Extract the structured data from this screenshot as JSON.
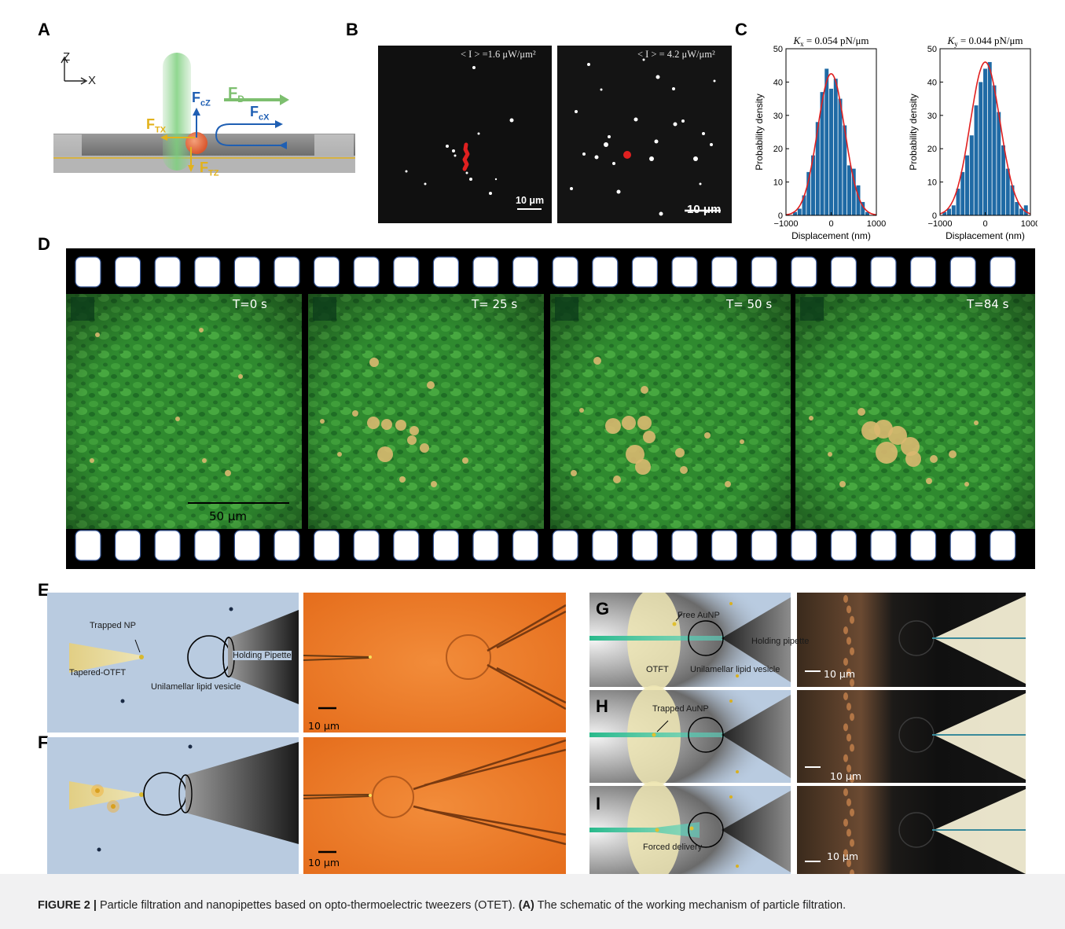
{
  "panel_labels": {
    "a": "A",
    "b": "B",
    "c": "C",
    "d": "D",
    "e": "E",
    "f": "F",
    "g": "G",
    "h": "H",
    "i": "I"
  },
  "panel_a": {
    "axis_z": "Z",
    "axis_x": "X",
    "f_d_main": "F",
    "f_d_sub": "D",
    "f_cz_main": "F",
    "f_cz_sub": "cZ",
    "f_cx_main": "F",
    "f_cx_sub": "cX",
    "f_tx_main": "F",
    "f_tx_sub": "TX",
    "f_tz_main": "F",
    "f_tz_sub": "TZ",
    "colors": {
      "f_d": "#7dbf6f",
      "f_c": "#1f5fb3",
      "f_t": "#e2b21c"
    }
  },
  "panel_b": {
    "left_intensity": "< I > =1.6 μW/μm²",
    "right_intensity": "< I > = 4.2 μW/μm²",
    "left_scalebar": "10 μm",
    "right_scalebar": "10 μm",
    "track_color": "#e02020"
  },
  "chart_data": [
    {
      "type": "bar",
      "title": "K_x = 0.054 pN/μm",
      "title_main": "K",
      "title_sub": "x",
      "title_rest": " = 0.054 pN/μm",
      "xlabel": "Displacement (nm)",
      "ylabel": "Probability density",
      "xlim": [
        -1000,
        1000
      ],
      "ylim": [
        0,
        50
      ],
      "xticks": [
        "−1000",
        "0",
        "1000"
      ],
      "yticks": [
        "0",
        "10",
        "20",
        "30",
        "40",
        "50"
      ],
      "bar_color": "#1f6aa5",
      "fit_color": "#e02020",
      "bin_centers": [
        -800,
        -700,
        -600,
        -500,
        -400,
        -300,
        -200,
        -100,
        0,
        100,
        200,
        300,
        400,
        500,
        600,
        700,
        800
      ],
      "values": [
        1,
        2,
        6,
        13,
        18,
        28,
        37,
        44,
        38,
        41,
        35,
        27,
        15,
        14,
        9,
        4,
        1
      ],
      "fit": {
        "amplitude": 42.5,
        "mean": 0,
        "sigma": 300
      }
    },
    {
      "type": "bar",
      "title": "K_y = 0.044 pN/μm",
      "title_main": "K",
      "title_sub": "y",
      "title_rest": " = 0.044 pN/μm",
      "xlabel": "Displacement (nm)",
      "ylabel": "Probability density",
      "xlim": [
        -1000,
        1000
      ],
      "ylim": [
        0,
        50
      ],
      "xticks": [
        "−1000",
        "0",
        "1000"
      ],
      "yticks": [
        "0",
        "10",
        "20",
        "30",
        "40",
        "50"
      ],
      "bar_color": "#1f6aa5",
      "fit_color": "#e02020",
      "bin_centers": [
        -900,
        -800,
        -700,
        -600,
        -500,
        -400,
        -300,
        -200,
        -100,
        0,
        100,
        200,
        300,
        400,
        500,
        600,
        700,
        800,
        900
      ],
      "values": [
        1,
        2,
        3,
        8,
        13,
        18,
        24,
        33,
        40,
        44,
        46,
        39,
        31,
        21,
        14,
        9,
        4,
        2,
        3
      ],
      "fit": {
        "amplitude": 46,
        "mean": 0,
        "sigma": 330
      }
    }
  ],
  "panel_d": {
    "timestamps": [
      "T=0  s",
      "T= 25  s",
      "T= 50  s",
      "T=84  s"
    ],
    "scalebar": "50 μm"
  },
  "panel_e": {
    "trapped_np": "Trapped NP",
    "holding_pipette": "Holding Pipette",
    "tapered_otft": "Tapered-OTFT",
    "vesicle": "Unilamellar lipid vesicle",
    "scalebar": "10 μm"
  },
  "panel_f": {
    "scalebar": "10 μm"
  },
  "panel_g": {
    "free_aunp": "Free AuNP",
    "otft": "OTFT",
    "holding_pipette": "Holding pipette",
    "vesicle": "Unilamellar lipid vesicle",
    "scalebar": "10 μm"
  },
  "panel_h": {
    "trapped_aunp": "Trapped AuNP",
    "scalebar": "10 μm"
  },
  "panel_i": {
    "forced_delivery": "Forced delivery",
    "scalebar": "10 μm"
  },
  "caption": {
    "label": "FIGURE 2 |",
    "text_1": " Particle filtration and nanopipettes based on opto-thermoelectric tweezers (OTET). ",
    "ref": "(A)",
    "text_2": " The schematic of the working mechanism of particle filtration."
  }
}
